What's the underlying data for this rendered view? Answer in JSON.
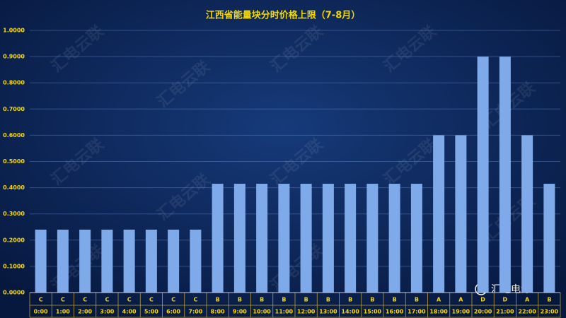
{
  "chart_data": {
    "type": "bar",
    "title": "江西省能量块分时价格上限（7-8月）",
    "categories": [
      "0:00",
      "1:00",
      "2:00",
      "3:00",
      "4:00",
      "5:00",
      "6:00",
      "7:00",
      "8:00",
      "9:00",
      "10:00",
      "11:00",
      "12:00",
      "13:00",
      "14:00",
      "15:00",
      "16:00",
      "17:00",
      "18:00",
      "19:00",
      "20:00",
      "21:00",
      "22:00",
      "23:00"
    ],
    "period_labels": [
      "C",
      "C",
      "C",
      "C",
      "C",
      "C",
      "C",
      "C",
      "B",
      "B",
      "B",
      "B",
      "B",
      "B",
      "B",
      "B",
      "B",
      "B",
      "A",
      "A",
      "D",
      "D",
      "A",
      "B"
    ],
    "values": [
      0.24,
      0.24,
      0.24,
      0.24,
      0.24,
      0.24,
      0.24,
      0.24,
      0.415,
      0.415,
      0.415,
      0.415,
      0.415,
      0.415,
      0.415,
      0.415,
      0.415,
      0.415,
      0.6,
      0.6,
      0.9,
      0.9,
      0.6,
      0.415
    ],
    "color": "#7eaaea",
    "ylim": [
      0,
      1
    ],
    "yticks": [
      {
        "value": 0,
        "label": "0.0000"
      },
      {
        "value": 0.1,
        "label": "0.1000"
      },
      {
        "value": 0.2,
        "label": "0.2000"
      },
      {
        "value": 0.3,
        "label": "0.3000"
      },
      {
        "value": 0.4,
        "label": "0.4000"
      },
      {
        "value": 0.5,
        "label": "0.5000"
      },
      {
        "value": 0.6,
        "label": "0.6000"
      },
      {
        "value": 0.7,
        "label": "0.7000"
      },
      {
        "value": 0.8,
        "label": "0.8000"
      },
      {
        "value": 0.9,
        "label": "0.9000"
      },
      {
        "value": 1,
        "label": "1.0000"
      }
    ],
    "grid": true,
    "watermark": "汇电云联",
    "logo_text": "汇电电评"
  }
}
